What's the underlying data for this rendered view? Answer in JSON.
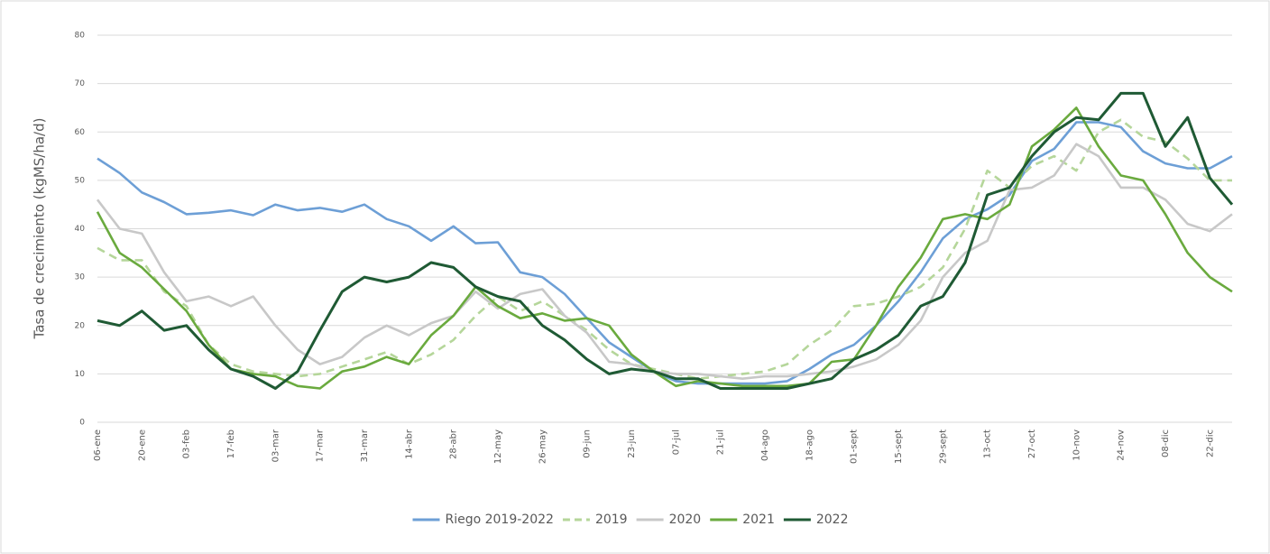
{
  "chart_data": {
    "type": "line",
    "y_label": "Tasa de crecimiento (kgMS/ha/d)",
    "categories": [
      "06-ene",
      null,
      "20-ene",
      null,
      "03-feb",
      null,
      "17-feb",
      null,
      "03-mar",
      null,
      "17-mar",
      null,
      "31-mar",
      null,
      "14-abr",
      null,
      "28-abr",
      null,
      "12-may",
      null,
      "26-may",
      null,
      "09-jun",
      null,
      "23-jun",
      null,
      "07-jul",
      null,
      "21-jul",
      null,
      "04-ago",
      null,
      "18-ago",
      null,
      "01-sept",
      null,
      "15-sept",
      null,
      "29-sept",
      null,
      "13-oct",
      null,
      "27-oct",
      null,
      "10-nov",
      null,
      "24-nov",
      null,
      "08-dic",
      null,
      "22-dic",
      null
    ],
    "ylim": [
      0,
      80
    ],
    "yticks": [
      0,
      10,
      20,
      30,
      40,
      50,
      60,
      70,
      80
    ],
    "grid": true,
    "legend": "bottom",
    "series": [
      {
        "name": "Riego 2019-2022",
        "color": "#6d9fd6",
        "line_style": "solid",
        "values": [
          54.5,
          51.5,
          47.5,
          45.5,
          43,
          43.3,
          43.8,
          42.8,
          45,
          43.8,
          44.3,
          43.5,
          45,
          42,
          40.5,
          37.5,
          40.5,
          37,
          37.2,
          31,
          30,
          26.5,
          21.5,
          16.5,
          13.5,
          10.5,
          8.5,
          8,
          8,
          8,
          8,
          8.5,
          11,
          14,
          16,
          20,
          25,
          31,
          38,
          42,
          44,
          47,
          54,
          56.5,
          62,
          62,
          61,
          56,
          53.5,
          52.5,
          52.5,
          55
        ]
      },
      {
        "name": "2019",
        "color": "#b5d69a",
        "line_style": "dashed",
        "values": [
          36,
          33.5,
          33.5,
          27,
          24,
          16,
          12,
          10.5,
          10,
          9.5,
          10,
          11.5,
          13,
          14.5,
          12,
          14,
          17,
          22,
          26,
          23,
          25,
          22,
          19,
          15,
          12,
          11,
          10,
          9,
          9.5,
          10,
          10.5,
          12,
          16,
          19,
          24,
          24.5,
          26,
          28,
          32,
          40,
          52,
          48.5,
          53,
          55,
          52,
          60,
          62.5,
          59,
          58,
          54.5,
          50,
          50
        ]
      },
      {
        "name": "2020",
        "color": "#c8c8c8",
        "line_style": "solid",
        "values": [
          46,
          40,
          39,
          31,
          25,
          26,
          24,
          26,
          20,
          15,
          12,
          13.5,
          17.5,
          20,
          18,
          20.5,
          22,
          27,
          23.5,
          26.5,
          27.5,
          22,
          18.5,
          12.5,
          12,
          10.5,
          10,
          10,
          9.5,
          9,
          9.5,
          9.5,
          10,
          10.5,
          11.5,
          13,
          16,
          21,
          30,
          35,
          37.5,
          48,
          48.5,
          51,
          57.5,
          55,
          48.5,
          48.5,
          46,
          41,
          39.5,
          43
        ]
      },
      {
        "name": "2021",
        "color": "#6aaa3e",
        "line_style": "solid",
        "values": [
          43.5,
          35,
          32,
          27.5,
          23,
          16,
          11,
          10,
          9.5,
          7.5,
          7,
          10.5,
          11.5,
          13.5,
          12,
          18,
          22,
          28,
          24,
          21.5,
          22.5,
          21,
          21.5,
          20,
          14,
          10.5,
          7.5,
          8.5,
          8,
          7.5,
          7.5,
          7.5,
          8,
          12.5,
          13,
          20,
          28,
          34,
          42,
          43,
          42,
          45,
          57,
          60.5,
          65,
          57,
          51,
          50,
          43,
          35,
          30,
          27
        ]
      },
      {
        "name": "2022",
        "color": "#1f5a34",
        "line_style": "solid",
        "values": [
          21,
          20,
          23,
          19,
          20,
          15,
          11,
          9.5,
          7,
          10.5,
          19,
          27,
          30,
          29,
          30,
          33,
          32,
          28,
          26,
          25,
          20,
          17,
          13,
          10,
          11,
          10.5,
          9,
          9,
          7,
          7,
          7,
          7,
          8,
          9,
          13,
          15,
          18,
          24,
          26,
          33,
          47,
          48.5,
          55,
          60,
          63,
          62.5,
          68,
          68,
          57,
          63,
          50.5,
          45
        ]
      }
    ]
  }
}
